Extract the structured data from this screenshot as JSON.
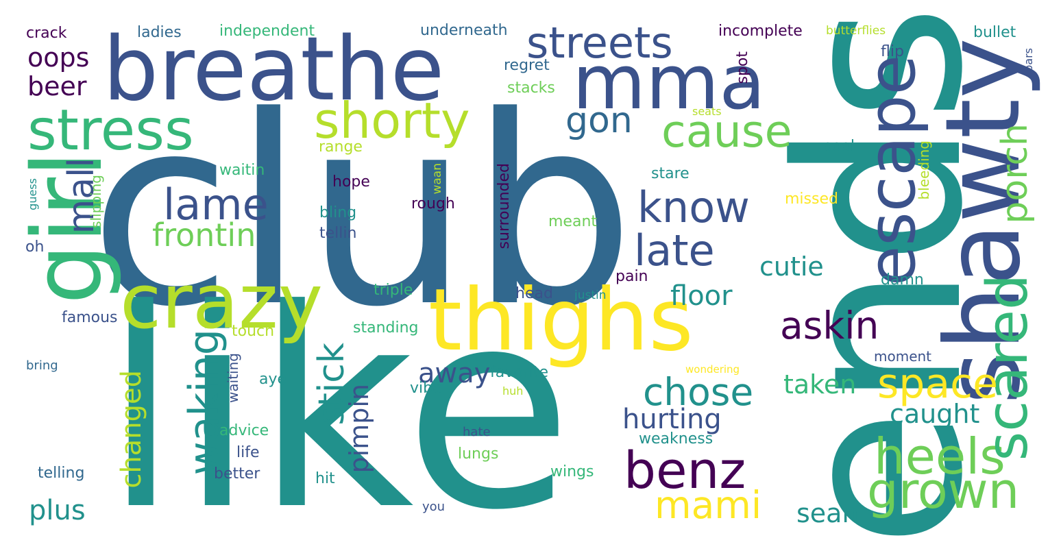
{
  "palette": {
    "background": "#ffffff",
    "dark_purple": "#440154",
    "indigo": "#3b528b",
    "blue": "#31688e",
    "teal": "#21918c",
    "green": "#35b779",
    "light_green": "#6ece58",
    "lime": "#b5de2b",
    "yellow": "#fde725"
  },
  "words": [
    {
      "id": "club",
      "text": "club"
    },
    {
      "id": "like",
      "text": "like"
    },
    {
      "id": "ends",
      "text": "ends"
    },
    {
      "id": "breathe",
      "text": "breathe"
    },
    {
      "id": "thighs",
      "text": "thighs"
    },
    {
      "id": "shawty",
      "text": "shawty"
    },
    {
      "id": "girl",
      "text": "girl"
    },
    {
      "id": "mma",
      "text": "mma"
    },
    {
      "id": "crazy",
      "text": "crazy"
    },
    {
      "id": "stress",
      "text": "stress"
    },
    {
      "id": "escape",
      "text": "escape"
    },
    {
      "id": "shorty",
      "text": "shorty"
    },
    {
      "id": "streets",
      "text": "streets"
    },
    {
      "id": "cause",
      "text": "cause"
    },
    {
      "id": "grown",
      "text": "grown"
    },
    {
      "id": "benz",
      "text": "benz"
    },
    {
      "id": "heels",
      "text": "heels"
    },
    {
      "id": "scared",
      "text": "scared"
    },
    {
      "id": "lame",
      "text": "lame"
    },
    {
      "id": "know",
      "text": "know"
    },
    {
      "id": "late",
      "text": "late"
    },
    {
      "id": "waking",
      "text": "waking"
    },
    {
      "id": "space",
      "text": "space"
    },
    {
      "id": "askin",
      "text": "askin"
    },
    {
      "id": "mami",
      "text": "mami"
    },
    {
      "id": "chose",
      "text": "chose"
    },
    {
      "id": "porch",
      "text": "porch"
    },
    {
      "id": "mall",
      "text": "mall"
    },
    {
      "id": "gon",
      "text": "gon"
    },
    {
      "id": "frontin",
      "text": "frontin"
    },
    {
      "id": "stick",
      "text": "stick"
    },
    {
      "id": "changed",
      "text": "changed"
    },
    {
      "id": "hurting",
      "text": "hurting"
    },
    {
      "id": "floor",
      "text": "floor"
    },
    {
      "id": "plus",
      "text": "plus"
    },
    {
      "id": "pimpin",
      "text": "pimpin"
    },
    {
      "id": "taken",
      "text": "taken"
    },
    {
      "id": "caught",
      "text": "caught"
    },
    {
      "id": "sean",
      "text": "sean"
    },
    {
      "id": "cutie",
      "text": "cutie"
    },
    {
      "id": "away",
      "text": "away"
    },
    {
      "id": "oops",
      "text": "oops"
    },
    {
      "id": "beer",
      "text": "beer"
    },
    {
      "id": "surrounded",
      "text": "surrounded"
    },
    {
      "id": "incomplete",
      "text": "incomplete"
    },
    {
      "id": "underneath",
      "text": "underneath"
    },
    {
      "id": "independent",
      "text": "independent"
    },
    {
      "id": "ladies",
      "text": "ladies"
    },
    {
      "id": "crack",
      "text": "crack"
    },
    {
      "id": "butterflies",
      "text": "butterflies"
    },
    {
      "id": "bullet",
      "text": "bullet"
    },
    {
      "id": "flip",
      "text": "flip"
    },
    {
      "id": "regret",
      "text": "regret"
    },
    {
      "id": "spot",
      "text": "spot"
    },
    {
      "id": "bars",
      "text": "bars"
    },
    {
      "id": "stacks",
      "text": "stacks"
    },
    {
      "id": "seats",
      "text": "seats"
    },
    {
      "id": "range",
      "text": "range"
    },
    {
      "id": "pool",
      "text": "pool"
    },
    {
      "id": "waitin",
      "text": "waitin"
    },
    {
      "id": "stare",
      "text": "stare"
    },
    {
      "id": "hope",
      "text": "hope"
    },
    {
      "id": "waan",
      "text": "waan"
    },
    {
      "id": "bleeding",
      "text": "bleeding"
    },
    {
      "id": "guess",
      "text": "guess"
    },
    {
      "id": "slipping",
      "text": "slipping"
    },
    {
      "id": "bling",
      "text": "bling"
    },
    {
      "id": "rough",
      "text": "rough"
    },
    {
      "id": "missed",
      "text": "missed"
    },
    {
      "id": "meant",
      "text": "meant"
    },
    {
      "id": "tellin",
      "text": "tellin"
    },
    {
      "id": "oh",
      "text": "oh"
    },
    {
      "id": "pain",
      "text": "pain"
    },
    {
      "id": "triple",
      "text": "triple"
    },
    {
      "id": "head",
      "text": "head"
    },
    {
      "id": "justin",
      "text": "justin"
    },
    {
      "id": "damn",
      "text": "damn"
    },
    {
      "id": "famous",
      "text": "famous"
    },
    {
      "id": "touch",
      "text": "touch"
    },
    {
      "id": "standing",
      "text": "standing"
    },
    {
      "id": "moment",
      "text": "moment"
    },
    {
      "id": "bring",
      "text": "bring"
    },
    {
      "id": "waiting",
      "text": "waiting"
    },
    {
      "id": "favorite",
      "text": "favorite"
    },
    {
      "id": "wondering",
      "text": "wondering"
    },
    {
      "id": "aye",
      "text": "aye"
    },
    {
      "id": "vibe",
      "text": "vibe"
    },
    {
      "id": "huh",
      "text": "huh"
    },
    {
      "id": "advice",
      "text": "advice"
    },
    {
      "id": "hate",
      "text": "hate"
    },
    {
      "id": "weakness",
      "text": "weakness"
    },
    {
      "id": "life",
      "text": "life"
    },
    {
      "id": "lungs",
      "text": "lungs"
    },
    {
      "id": "telling",
      "text": "telling"
    },
    {
      "id": "better",
      "text": "better"
    },
    {
      "id": "hit",
      "text": "hit"
    },
    {
      "id": "wings",
      "text": "wings"
    },
    {
      "id": "you",
      "text": "you"
    }
  ]
}
